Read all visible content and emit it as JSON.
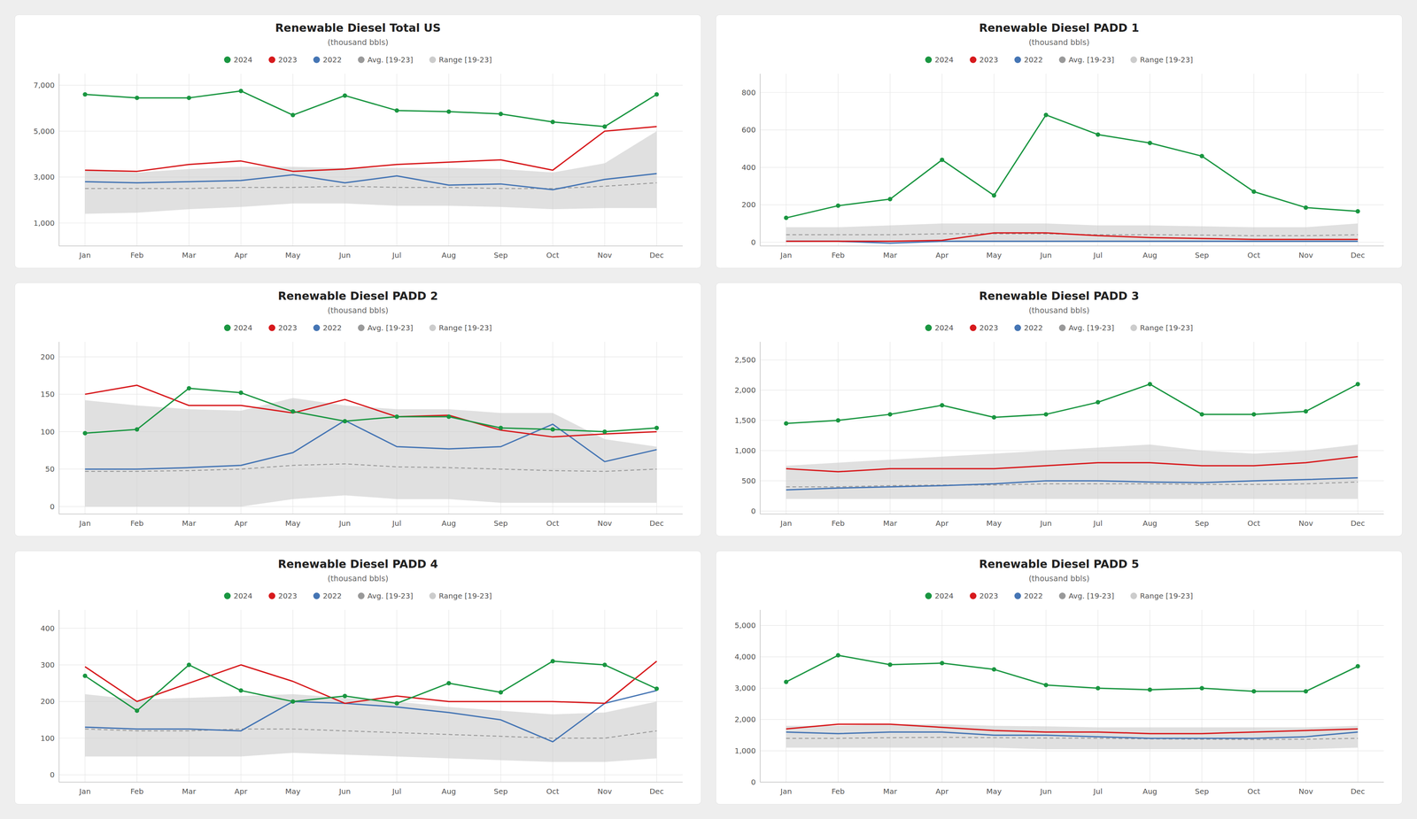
{
  "chart_data": [
    {
      "type": "line",
      "title": "Renewable Diesel Total US",
      "subtitle": "(thousand bbls)",
      "categories": [
        "Jan",
        "Feb",
        "Mar",
        "Apr",
        "May",
        "Jun",
        "Jul",
        "Aug",
        "Sep",
        "Oct",
        "Nov",
        "Dec"
      ],
      "ylim": [
        0,
        7500
      ],
      "yticks": [
        {
          "value": 1000,
          "label": "1,000"
        },
        {
          "value": 3000,
          "label": "3,000"
        },
        {
          "value": 5000,
          "label": "5,000"
        },
        {
          "value": 7000,
          "label": "7,000"
        }
      ],
      "grid": true,
      "series": [
        {
          "name": "2024",
          "color": "#1a9641",
          "marker": "circle",
          "values": [
            6600,
            6450,
            6450,
            6750,
            5700,
            6550,
            5900,
            5850,
            5750,
            5400,
            5200,
            6600
          ]
        },
        {
          "name": "2023",
          "color": "#d7191c",
          "values": [
            3300,
            3250,
            3550,
            3700,
            3250,
            3350,
            3550,
            3650,
            3750,
            3300,
            5000,
            5200
          ]
        },
        {
          "name": "2022",
          "color": "#4575b4",
          "values": [
            2800,
            2750,
            2800,
            2850,
            3100,
            2750,
            3050,
            2650,
            2700,
            2450,
            2900,
            3150
          ]
        },
        {
          "name": "Avg. [19-23]",
          "color": "#999999",
          "line_style": "dashed",
          "values": [
            2500,
            2500,
            2500,
            2550,
            2550,
            2600,
            2550,
            2550,
            2500,
            2500,
            2600,
            2750
          ]
        },
        {
          "name": "Range [19-23]",
          "color": "#cccccc",
          "type": "range",
          "low": [
            1400,
            1450,
            1600,
            1700,
            1850,
            1850,
            1750,
            1750,
            1700,
            1600,
            1650,
            1650
          ],
          "high": [
            3300,
            3200,
            3350,
            3450,
            3450,
            3400,
            3400,
            3400,
            3350,
            3200,
            3600,
            5000
          ]
        }
      ]
    },
    {
      "type": "line",
      "title": "Renewable Diesel PADD 1",
      "subtitle": "(thousand bbls)",
      "categories": [
        "Jan",
        "Feb",
        "Mar",
        "Apr",
        "May",
        "Jun",
        "Jul",
        "Aug",
        "Sep",
        "Oct",
        "Nov",
        "Dec"
      ],
      "ylim": [
        -20,
        900
      ],
      "yticks": [
        0,
        200,
        400,
        600,
        800
      ],
      "grid": true,
      "series": [
        {
          "name": "2024",
          "color": "#1a9641",
          "marker": "circle",
          "values": [
            130,
            195,
            230,
            440,
            250,
            680,
            575,
            530,
            460,
            270,
            185,
            165
          ]
        },
        {
          "name": "2023",
          "color": "#d7191c",
          "values": [
            5,
            5,
            5,
            10,
            50,
            50,
            35,
            25,
            20,
            15,
            15,
            15
          ]
        },
        {
          "name": "2022",
          "color": "#4575b4",
          "values": [
            5,
            5,
            -5,
            5,
            5,
            5,
            5,
            5,
            5,
            5,
            5,
            5
          ]
        },
        {
          "name": "Avg. [19-23]",
          "color": "#999999",
          "line_style": "dashed",
          "values": [
            40,
            40,
            40,
            45,
            45,
            45,
            40,
            40,
            38,
            35,
            35,
            40
          ]
        },
        {
          "name": "Range [19-23]",
          "color": "#cccccc",
          "type": "range",
          "low": [
            0,
            0,
            0,
            0,
            0,
            0,
            0,
            0,
            0,
            0,
            0,
            0
          ],
          "high": [
            80,
            80,
            90,
            100,
            100,
            100,
            90,
            90,
            85,
            80,
            80,
            100
          ]
        }
      ]
    },
    {
      "type": "line",
      "title": "Renewable Diesel PADD 2",
      "subtitle": "(thousand bbls)",
      "categories": [
        "Jan",
        "Feb",
        "Mar",
        "Apr",
        "May",
        "Jun",
        "Jul",
        "Aug",
        "Sep",
        "Oct",
        "Nov",
        "Dec"
      ],
      "ylim": [
        -10,
        220
      ],
      "yticks": [
        0,
        50,
        100,
        150,
        200
      ],
      "grid": true,
      "series": [
        {
          "name": "2024",
          "color": "#1a9641",
          "marker": "circle",
          "values": [
            98,
            103,
            158,
            152,
            127,
            114,
            120,
            120,
            105,
            103,
            100,
            105
          ]
        },
        {
          "name": "2023",
          "color": "#d7191c",
          "values": [
            150,
            162,
            135,
            135,
            125,
            143,
            120,
            122,
            102,
            93,
            97,
            100
          ]
        },
        {
          "name": "2022",
          "color": "#4575b4",
          "values": [
            50,
            50,
            52,
            55,
            72,
            115,
            80,
            77,
            80,
            110,
            60,
            76
          ]
        },
        {
          "name": "Avg. [19-23]",
          "color": "#999999",
          "line_style": "dashed",
          "values": [
            47,
            47,
            48,
            50,
            55,
            57,
            53,
            52,
            50,
            48,
            47,
            50
          ]
        },
        {
          "name": "Range [19-23]",
          "color": "#cccccc",
          "type": "range",
          "low": [
            0,
            0,
            0,
            0,
            10,
            15,
            10,
            10,
            5,
            5,
            5,
            5
          ],
          "high": [
            142,
            135,
            130,
            128,
            145,
            135,
            130,
            130,
            125,
            125,
            90,
            80
          ]
        }
      ]
    },
    {
      "type": "line",
      "title": "Renewable Diesel PADD 3",
      "subtitle": "(thousand bbls)",
      "categories": [
        "Jan",
        "Feb",
        "Mar",
        "Apr",
        "May",
        "Jun",
        "Jul",
        "Aug",
        "Sep",
        "Oct",
        "Nov",
        "Dec"
      ],
      "ylim": [
        -50,
        2800
      ],
      "yticks": [
        0,
        500,
        {
          "value": 1000,
          "label": "1,000"
        },
        {
          "value": 1500,
          "label": "1,500"
        },
        {
          "value": 2000,
          "label": "2,000"
        },
        {
          "value": 2500,
          "label": "2,500"
        }
      ],
      "grid": true,
      "series": [
        {
          "name": "2024",
          "color": "#1a9641",
          "marker": "circle",
          "values": [
            1450,
            1500,
            1600,
            1750,
            1550,
            1600,
            1800,
            2100,
            1600,
            1600,
            1650,
            2100
          ]
        },
        {
          "name": "2023",
          "color": "#d7191c",
          "values": [
            700,
            650,
            700,
            700,
            700,
            750,
            800,
            800,
            750,
            750,
            800,
            900
          ]
        },
        {
          "name": "2022",
          "color": "#4575b4",
          "values": [
            350,
            380,
            400,
            420,
            450,
            500,
            500,
            480,
            470,
            500,
            520,
            550
          ]
        },
        {
          "name": "Avg. [19-23]",
          "color": "#999999",
          "line_style": "dashed",
          "values": [
            400,
            400,
            420,
            430,
            430,
            450,
            450,
            450,
            440,
            440,
            450,
            480
          ]
        },
        {
          "name": "Range [19-23]",
          "color": "#cccccc",
          "type": "range",
          "low": [
            200,
            200,
            200,
            200,
            200,
            200,
            200,
            200,
            200,
            200,
            200,
            200
          ],
          "high": [
            750,
            800,
            850,
            900,
            950,
            1000,
            1050,
            1100,
            1000,
            950,
            1000,
            1100
          ]
        }
      ]
    },
    {
      "type": "line",
      "title": "Renewable Diesel PADD 4",
      "subtitle": "(thousand bbls)",
      "categories": [
        "Jan",
        "Feb",
        "Mar",
        "Apr",
        "May",
        "Jun",
        "Jul",
        "Aug",
        "Sep",
        "Oct",
        "Nov",
        "Dec"
      ],
      "ylim": [
        -20,
        450
      ],
      "yticks": [
        0,
        100,
        200,
        300,
        400
      ],
      "grid": true,
      "series": [
        {
          "name": "2024",
          "color": "#1a9641",
          "marker": "circle",
          "values": [
            270,
            175,
            300,
            230,
            200,
            215,
            195,
            250,
            225,
            310,
            300,
            235
          ]
        },
        {
          "name": "2023",
          "color": "#d7191c",
          "values": [
            295,
            200,
            250,
            300,
            255,
            195,
            215,
            200,
            200,
            200,
            195,
            310
          ]
        },
        {
          "name": "2022",
          "color": "#4575b4",
          "values": [
            130,
            125,
            125,
            120,
            200,
            195,
            185,
            170,
            150,
            90,
            195,
            230
          ]
        },
        {
          "name": "Avg. [19-23]",
          "color": "#999999",
          "line_style": "dashed",
          "values": [
            125,
            120,
            120,
            125,
            125,
            120,
            115,
            110,
            105,
            100,
            100,
            120
          ]
        },
        {
          "name": "Range [19-23]",
          "color": "#cccccc",
          "type": "range",
          "low": [
            50,
            50,
            50,
            50,
            60,
            55,
            50,
            45,
            40,
            35,
            35,
            45
          ],
          "high": [
            220,
            205,
            210,
            215,
            220,
            210,
            200,
            185,
            175,
            165,
            170,
            200
          ]
        }
      ]
    },
    {
      "type": "line",
      "title": "Renewable Diesel PADD 5",
      "subtitle": "(thousand bbls)",
      "categories": [
        "Jan",
        "Feb",
        "Mar",
        "Apr",
        "May",
        "Jun",
        "Jul",
        "Aug",
        "Sep",
        "Oct",
        "Nov",
        "Dec"
      ],
      "ylim": [
        0,
        5500
      ],
      "yticks": [
        0,
        {
          "value": 1000,
          "label": "1,000"
        },
        {
          "value": 2000,
          "label": "2,000"
        },
        {
          "value": 3000,
          "label": "3,000"
        },
        {
          "value": 4000,
          "label": "4,000"
        },
        {
          "value": 5000,
          "label": "5,000"
        }
      ],
      "grid": true,
      "series": [
        {
          "name": "2024",
          "color": "#1a9641",
          "marker": "circle",
          "values": [
            3200,
            4050,
            3750,
            3800,
            3600,
            3100,
            3000,
            2950,
            3000,
            2900,
            2900,
            3700
          ]
        },
        {
          "name": "2023",
          "color": "#d7191c",
          "values": [
            1700,
            1850,
            1850,
            1750,
            1650,
            1600,
            1600,
            1550,
            1550,
            1600,
            1650,
            1700
          ]
        },
        {
          "name": "2022",
          "color": "#4575b4",
          "values": [
            1600,
            1550,
            1600,
            1600,
            1500,
            1500,
            1450,
            1400,
            1400,
            1400,
            1450,
            1600
          ]
        },
        {
          "name": "Avg. [19-23]",
          "color": "#999999",
          "line_style": "dashed",
          "values": [
            1400,
            1400,
            1420,
            1430,
            1420,
            1410,
            1400,
            1380,
            1370,
            1360,
            1370,
            1400
          ]
        },
        {
          "name": "Range [19-23]",
          "color": "#cccccc",
          "type": "range",
          "low": [
            1100,
            1100,
            1100,
            1100,
            1100,
            1050,
            1050,
            1050,
            1050,
            1050,
            1050,
            1100
          ],
          "high": [
            1800,
            1800,
            1850,
            1850,
            1800,
            1780,
            1750,
            1750,
            1750,
            1750,
            1750,
            1800
          ]
        }
      ]
    }
  ]
}
